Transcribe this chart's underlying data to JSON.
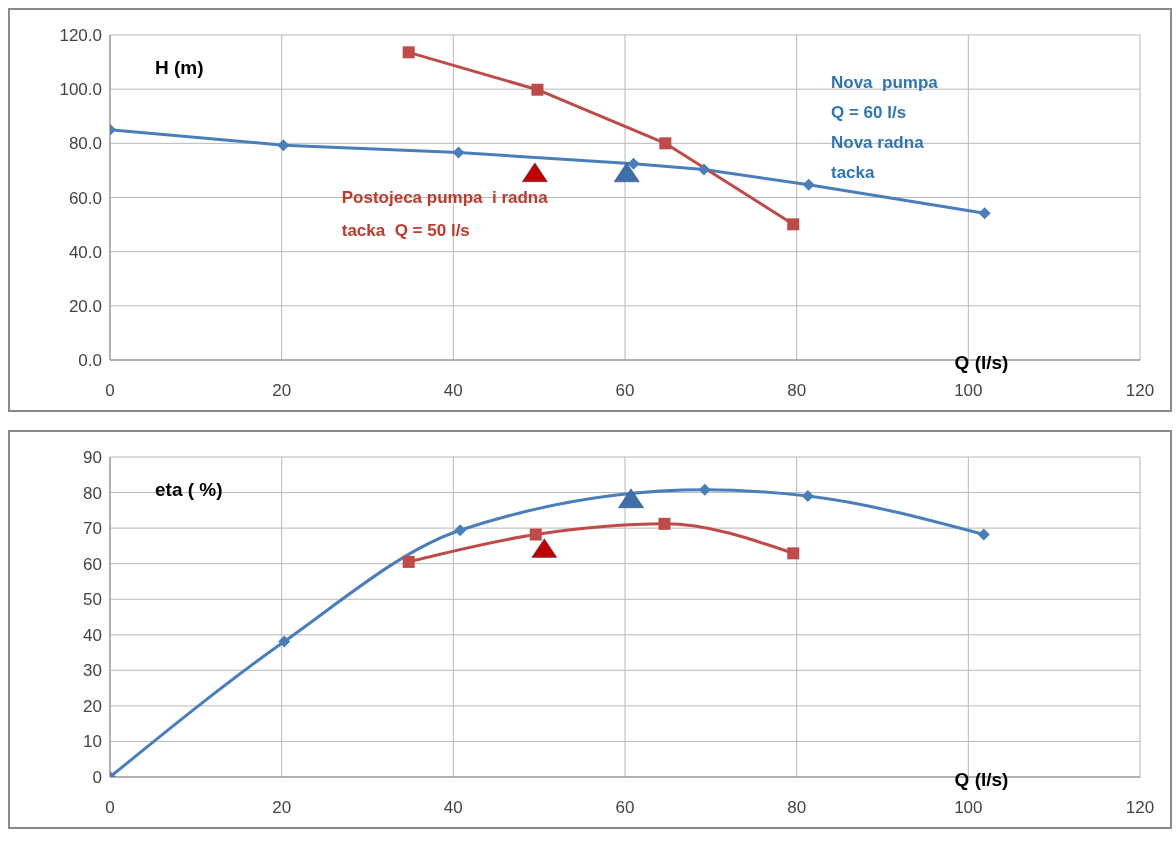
{
  "chart_data": [
    {
      "type": "line",
      "ylabel": "H (m)",
      "xlabel": "Q (l/s)",
      "xlim": [
        0,
        120
      ],
      "xticks": [
        0,
        20,
        40,
        60,
        80,
        100,
        120
      ],
      "ylim": [
        0,
        120
      ],
      "yticks": [
        {
          "value": 0,
          "label": "0.0"
        },
        {
          "value": 20,
          "label": "20.0"
        },
        {
          "value": 40,
          "label": "40.0"
        },
        {
          "value": 60,
          "label": "60.0"
        },
        {
          "value": 80,
          "label": "80.0"
        },
        {
          "value": 100,
          "label": "100.0"
        },
        {
          "value": 120,
          "label": "120.0"
        }
      ],
      "grid": true,
      "series": [
        {
          "color": "#4a7ebb",
          "marker": "diamond",
          "x": [
            0,
            20.2,
            40.6,
            61,
            69.2,
            81.4,
            101.9
          ],
          "values": [
            85,
            79.3,
            76.6,
            72.5,
            70.3,
            64.7,
            54.2
          ]
        },
        {
          "color": "#be4b48",
          "marker": "square",
          "x": [
            34.8,
            49.8,
            64.7,
            79.6
          ],
          "values": [
            113.6,
            99.8,
            80,
            50.1
          ]
        },
        {
          "type": "scatter",
          "color": "#c00000",
          "marker": "triangle",
          "x": [
            49.5
          ],
          "values": [
            68.8
          ]
        },
        {
          "type": "scatter",
          "color": "#3f6fa8",
          "marker": "triangle",
          "x": [
            60.2
          ],
          "values": [
            68.8
          ]
        }
      ],
      "annotations": [
        "Postojeca pumpa  i radna\ntacka  Q = 50 l/s",
        "Nova  pumpa\nQ = 60 l/s\nNova radna\ntacka"
      ]
    },
    {
      "type": "line",
      "ylabel": "eta ( %)",
      "xlabel": "Q (l/s)",
      "xlim": [
        0,
        120
      ],
      "xticks": [
        0,
        20,
        40,
        60,
        80,
        100,
        120
      ],
      "ylim": [
        0,
        90
      ],
      "yticks": [
        0,
        10,
        20,
        30,
        40,
        50,
        60,
        70,
        80,
        90
      ],
      "grid": true,
      "series": [
        {
          "color": "#4a7ebb",
          "marker": "diamond",
          "x": [
            0,
            20.3,
            40.8,
            69.3,
            81.3,
            101.8
          ],
          "values": [
            0,
            38.1,
            69.4,
            80.8,
            79,
            68.2
          ]
        },
        {
          "color": "#be4b48",
          "marker": "square",
          "x": [
            34.8,
            49.6,
            64.6,
            79.6
          ],
          "values": [
            60.5,
            68.2,
            71.2,
            62.9
          ]
        },
        {
          "type": "scatter",
          "color": "#c00000",
          "marker": "triangle",
          "x": [
            50.6
          ],
          "values": [
            64
          ]
        },
        {
          "type": "scatter",
          "color": "#3f6fa8",
          "marker": "triangle",
          "x": [
            60.7
          ],
          "values": [
            78
          ]
        }
      ]
    }
  ]
}
